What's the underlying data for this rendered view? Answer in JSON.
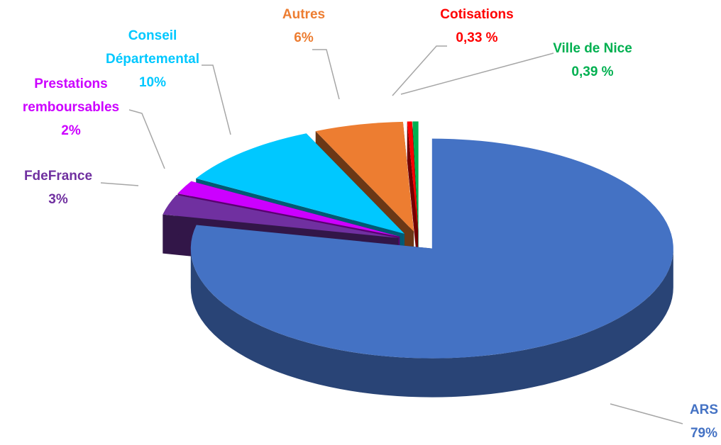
{
  "chart_data": {
    "type": "pie",
    "style": "3d-exploded",
    "categories": [
      "ARS",
      "FdeFrance",
      "Prestations remboursables",
      "Conseil Départemental",
      "Autres",
      "Cotisations",
      "Ville de Nice"
    ],
    "values": [
      79,
      3,
      2,
      10,
      6,
      0.33,
      0.39
    ],
    "value_labels": [
      "79%",
      "3%",
      "2%",
      "10%",
      "6%",
      "0,33 %",
      "0,39 %"
    ],
    "colors": [
      "#4472c4",
      "#7030a0",
      "#cc00ff",
      "#00c8ff",
      "#ed7d31",
      "#ff0000",
      "#00b050"
    ]
  }
}
